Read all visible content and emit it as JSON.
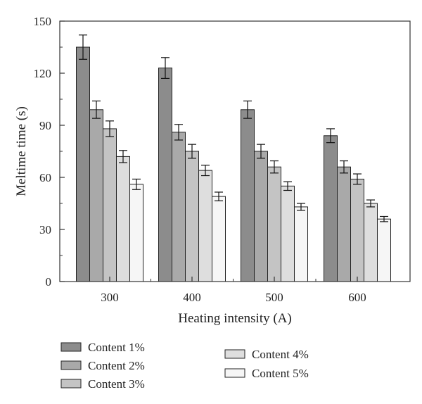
{
  "chart_data": {
    "type": "bar",
    "xlabel": "Heating intensity (A)",
    "ylabel": "Meltime time (s)",
    "categories": [
      "300",
      "400",
      "500",
      "600"
    ],
    "ylim": [
      0,
      150
    ],
    "yticks": [
      "0",
      "30",
      "60",
      "90",
      "120",
      "150"
    ],
    "grid": false,
    "legend_position": "bottom",
    "error_bars": true,
    "series": [
      {
        "name": "Content 1%",
        "color": "#8c8c8c",
        "values": [
          135,
          123,
          99,
          84
        ],
        "errors": [
          7,
          6,
          5,
          4
        ]
      },
      {
        "name": "Content 2%",
        "color": "#a9a9a9",
        "values": [
          99,
          86,
          75,
          66
        ],
        "errors": [
          5,
          4.5,
          4,
          3.5
        ]
      },
      {
        "name": "Content 3%",
        "color": "#c4c4c4",
        "values": [
          88,
          75,
          66,
          59
        ],
        "errors": [
          4.5,
          4,
          3.5,
          3
        ]
      },
      {
        "name": "Content 4%",
        "color": "#dedede",
        "values": [
          72,
          64,
          55,
          45
        ],
        "errors": [
          3.5,
          3,
          2.5,
          2
        ]
      },
      {
        "name": "Content 5%",
        "color": "#f6f6f6",
        "values": [
          56,
          49,
          43,
          36
        ],
        "errors": [
          3,
          2.5,
          2,
          1.5
        ]
      }
    ]
  }
}
